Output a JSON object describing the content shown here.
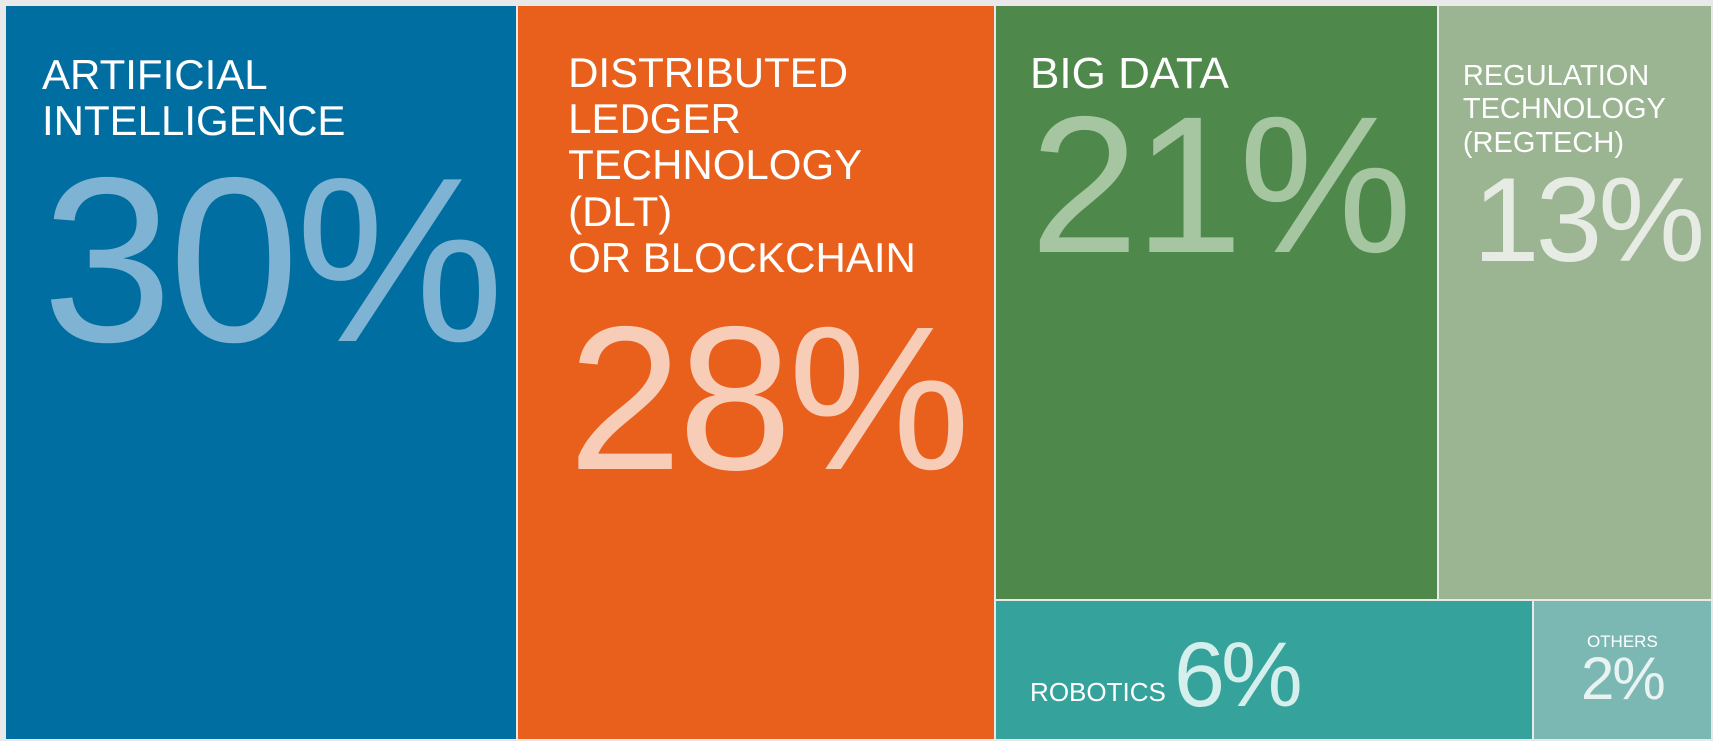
{
  "chart_data": {
    "type": "treemap",
    "categories": [
      "ARTIFICIAL\nINTELLIGENCE",
      "DISTRIBUTED\nLEDGER\nTECHNOLOGY\n(DLT)\nOR BLOCKCHAIN",
      "BIG DATA",
      "REGULATION\nTECHNOLOGY\n(REGTECH)",
      "ROBOTICS",
      "OTHERS"
    ],
    "values": [
      30,
      28,
      21,
      13,
      6,
      2
    ],
    "value_labels": [
      "30%",
      "28%",
      "21%",
      "13%",
      "6%",
      "2%"
    ],
    "colors": [
      "#006ea1",
      "#e8601c",
      "#4e884b",
      "#9bb592",
      "#35a39b",
      "#7cb8b3"
    ]
  }
}
